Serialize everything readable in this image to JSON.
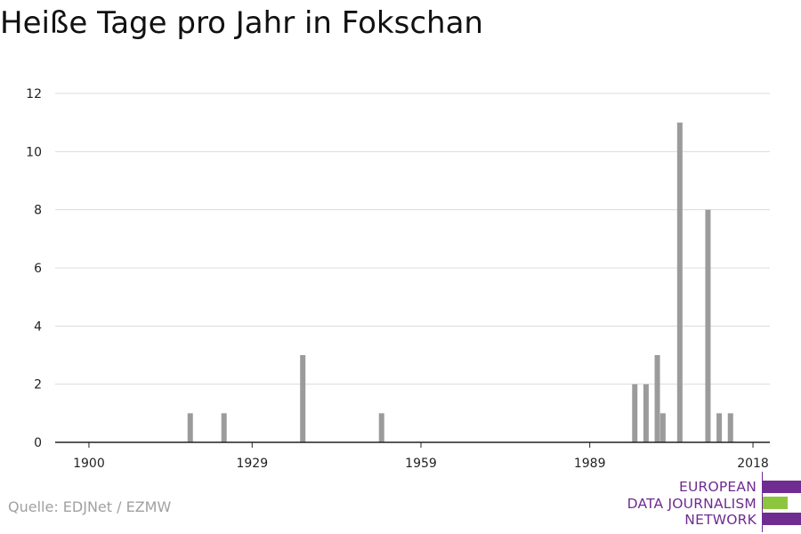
{
  "title": "Heiße Tage pro Jahr in Fokschan",
  "source": "Quelle: EDJNet / EZMW",
  "logo": {
    "lines": [
      "EUROPEAN",
      "DATA JOURNALISM",
      "NETWORK"
    ],
    "colors": {
      "purple": "#6f2c91",
      "green": "#8cc63f"
    }
  },
  "chart_data": {
    "type": "bar",
    "title": "Heiße Tage pro Jahr in Fokschan",
    "xlabel": "",
    "ylabel": "",
    "xlim": [
      1894,
      2021
    ],
    "ylim": [
      0,
      12
    ],
    "xticks": [
      1900,
      1929,
      1959,
      1989,
      2018
    ],
    "yticks": [
      0,
      2,
      4,
      6,
      8,
      10,
      12
    ],
    "grid": true,
    "bar_color": "#9b9b9b",
    "x": [
      1918,
      1924,
      1938,
      1952,
      1997,
      1999,
      2001,
      2002,
      2005,
      2010,
      2012,
      2014
    ],
    "values": [
      1,
      1,
      3,
      1,
      2,
      2,
      3,
      1,
      11,
      8,
      1,
      1
    ]
  }
}
